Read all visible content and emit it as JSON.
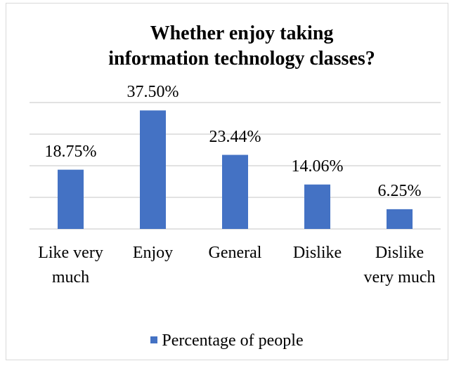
{
  "chart_data": {
    "type": "bar",
    "title": "Whether enjoy taking\ninformation technology classes?",
    "categories": [
      "Like very much",
      "Enjoy",
      "General",
      "Dislike",
      "Dislike very much"
    ],
    "series": [
      {
        "name": "Percentage of people",
        "color": "#4472c4",
        "values": [
          18.75,
          37.5,
          23.44,
          14.06,
          6.25
        ],
        "value_labels": [
          "18.75%",
          "37.50%",
          "23.44%",
          "14.06%",
          "6.25%"
        ]
      }
    ],
    "ylim": [
      0,
      40
    ],
    "yticks": [
      0,
      10,
      20,
      30,
      40
    ],
    "grid": true,
    "legend": "bottom"
  }
}
